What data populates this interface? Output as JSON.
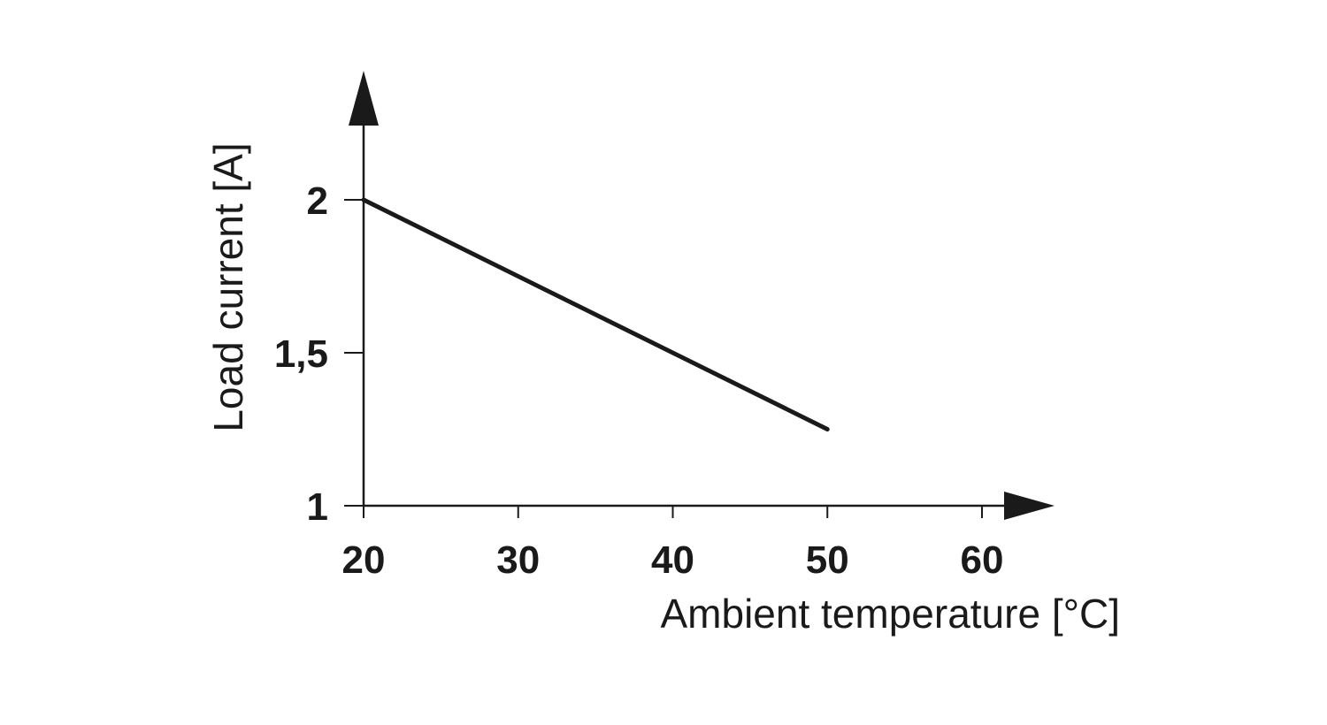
{
  "chart_data": {
    "type": "line",
    "xlabel": "Ambient temperature [°C]",
    "ylabel": "Load current [A]",
    "xlim": [
      20,
      60
    ],
    "ylim": [
      1,
      2
    ],
    "x_ticks": [
      {
        "value": 20,
        "label": "20"
      },
      {
        "value": 30,
        "label": "30"
      },
      {
        "value": 40,
        "label": "40"
      },
      {
        "value": 50,
        "label": "50"
      },
      {
        "value": 60,
        "label": "60"
      }
    ],
    "y_ticks": [
      {
        "value": 1,
        "label": "1"
      },
      {
        "value": 1.5,
        "label": "1,5"
      },
      {
        "value": 2,
        "label": "2"
      }
    ],
    "grid": false,
    "series": [
      {
        "color": "#1a1a1a",
        "points": [
          {
            "x": 20,
            "y": 2
          },
          {
            "x": 50,
            "y": 1.25
          }
        ]
      }
    ]
  }
}
